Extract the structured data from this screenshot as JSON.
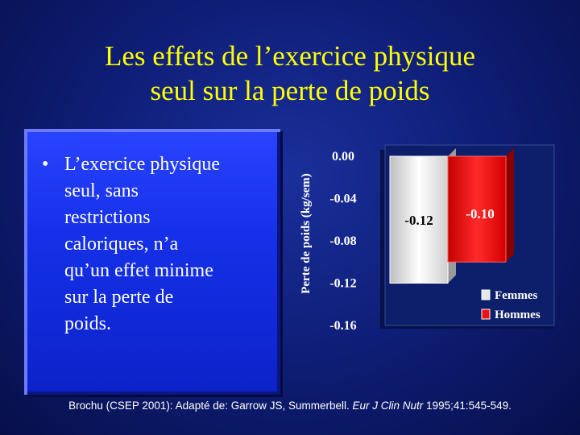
{
  "slide": {
    "title_lines": [
      "Les effets de l’exercice physique",
      "seul sur la perte de poids"
    ],
    "bullet_symbol": "•",
    "bullet_lines": [
      "L’exercice physique",
      "seul, sans",
      "restrictions",
      "caloriques, n’a",
      "qu’un effet minime",
      "sur la perte de",
      "poids."
    ],
    "footer": {
      "prefix": "Brochu (CSEP 2001): Adapté de: Garrow JS, Summerbell. ",
      "journal": "Eur J Clin Nutr",
      "suffix": " 1995;41:545-549."
    }
  },
  "chart_data": {
    "type": "bar",
    "ylabel": "Perte de poids (kg/sem)",
    "ylim": [
      -0.16,
      0.0
    ],
    "yticks": [
      "0.00",
      "-0.04",
      "-0.08",
      "-0.12",
      "-0.16"
    ],
    "ytick_values": [
      0.0,
      -0.04,
      -0.08,
      -0.12,
      -0.16
    ],
    "series": [
      {
        "name": "Femmes",
        "value": -0.12,
        "label": "-0.12",
        "color": "#e8e8e8"
      },
      {
        "name": "Hommes",
        "value": -0.1,
        "label": "-0.10",
        "color": "#ee1111"
      }
    ],
    "legend_position": "bottom-right",
    "tick_color": "#ffffff",
    "plot_background": "#0d1f6a"
  }
}
